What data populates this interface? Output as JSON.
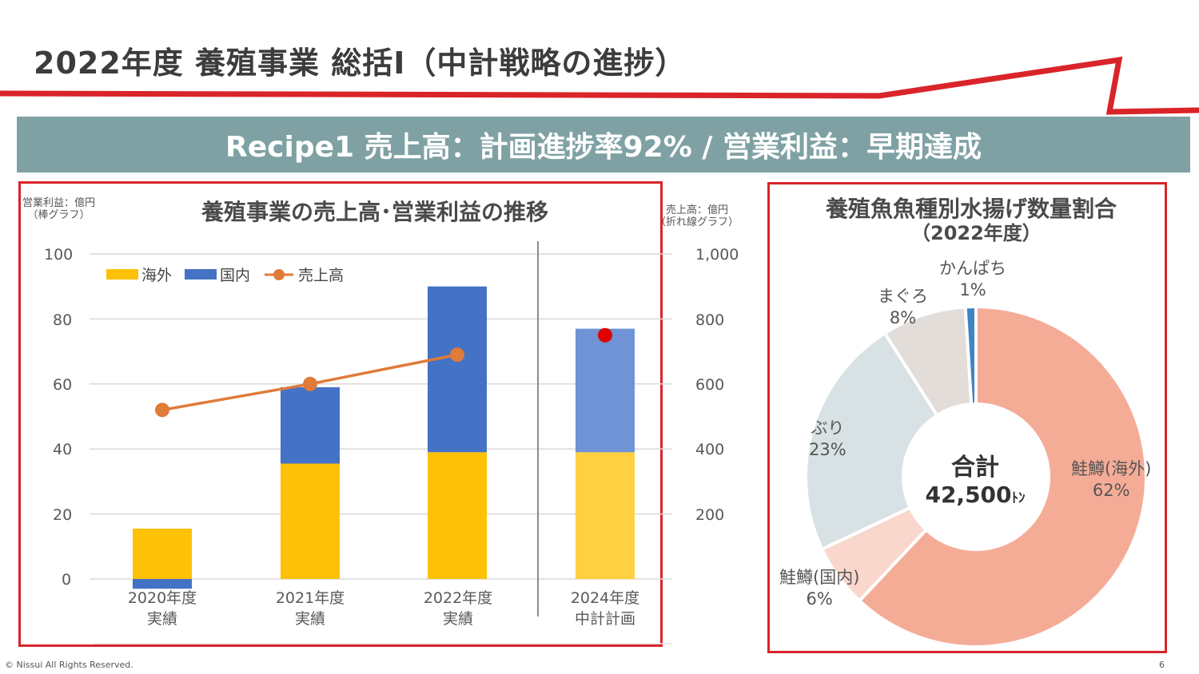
{
  "slide": {
    "title": "2022年度 養殖事業 総括Ⅰ（中計戦略の進捗）",
    "banner": "Recipe1  売上高：計画進捗率92% / 営業利益：早期達成",
    "copyright": "© Nissui All Rights Reserved.",
    "page_number": "6",
    "brand_red": "#d9242a",
    "banner_color": "#7fa1a3"
  },
  "chart_data": [
    {
      "type": "bar",
      "title": "養殖事業の売上高･営業利益の推移",
      "left_axis_label": [
        "営業利益：億円",
        "（棒グラフ）"
      ],
      "right_axis_label": [
        "売上高：億円",
        "（折れ線グラフ）"
      ],
      "categories": [
        [
          "2020年度",
          "実績"
        ],
        [
          "2021年度",
          "実績"
        ],
        [
          "2022年度",
          "実績"
        ],
        [
          "2024年度",
          "中計計画"
        ]
      ],
      "ylim": [
        0,
        100
      ],
      "y2lim": [
        0,
        1000
      ],
      "y_ticks": [
        "100",
        "80",
        "60",
        "40",
        "20",
        "0"
      ],
      "y2_ticks": [
        "1,000",
        "800",
        "600",
        "400",
        "200"
      ],
      "legend": [
        "海外",
        "国内",
        "売上高"
      ],
      "series": [
        {
          "name": "海外",
          "kind": "stacked-bar",
          "color": "#fdc106",
          "plan_color": "#ffd140",
          "values": [
            15.5,
            35.5,
            39,
            39
          ]
        },
        {
          "name": "国内",
          "kind": "stacked-bar",
          "color": "#4472c4",
          "plan_color": "#6f93d4",
          "values": [
            -3,
            23.5,
            51,
            38
          ]
        },
        {
          "name": "売上高",
          "kind": "line",
          "axis": "right",
          "color": "#e07b39",
          "values": [
            520,
            600,
            690,
            null
          ]
        },
        {
          "name": "売上高計画",
          "kind": "point",
          "axis": "right",
          "color": "#e00000",
          "values": [
            null,
            null,
            null,
            750
          ]
        }
      ]
    },
    {
      "type": "pie",
      "title": "養殖魚魚種別水揚げ数量割合",
      "subtitle": "（2022年度）",
      "center": {
        "label": "合計",
        "value": "42,500",
        "unit": "ﾄﾝ"
      },
      "slices": [
        {
          "name": "鮭鱒(海外)",
          "pct_label": "62%",
          "value": 62,
          "color": "#f5ac97"
        },
        {
          "name": "鮭鱒(国内)",
          "pct_label": "6%",
          "value": 6,
          "color": "#fad7cd"
        },
        {
          "name": "ぶり",
          "pct_label": "23%",
          "value": 23,
          "color": "#d8e1e4"
        },
        {
          "name": "まぐろ",
          "pct_label": "8%",
          "value": 8,
          "color": "#e3ddd9"
        },
        {
          "name": "かんぱち",
          "pct_label": "1%",
          "value": 1,
          "color": "#3f85c4"
        }
      ]
    }
  ]
}
